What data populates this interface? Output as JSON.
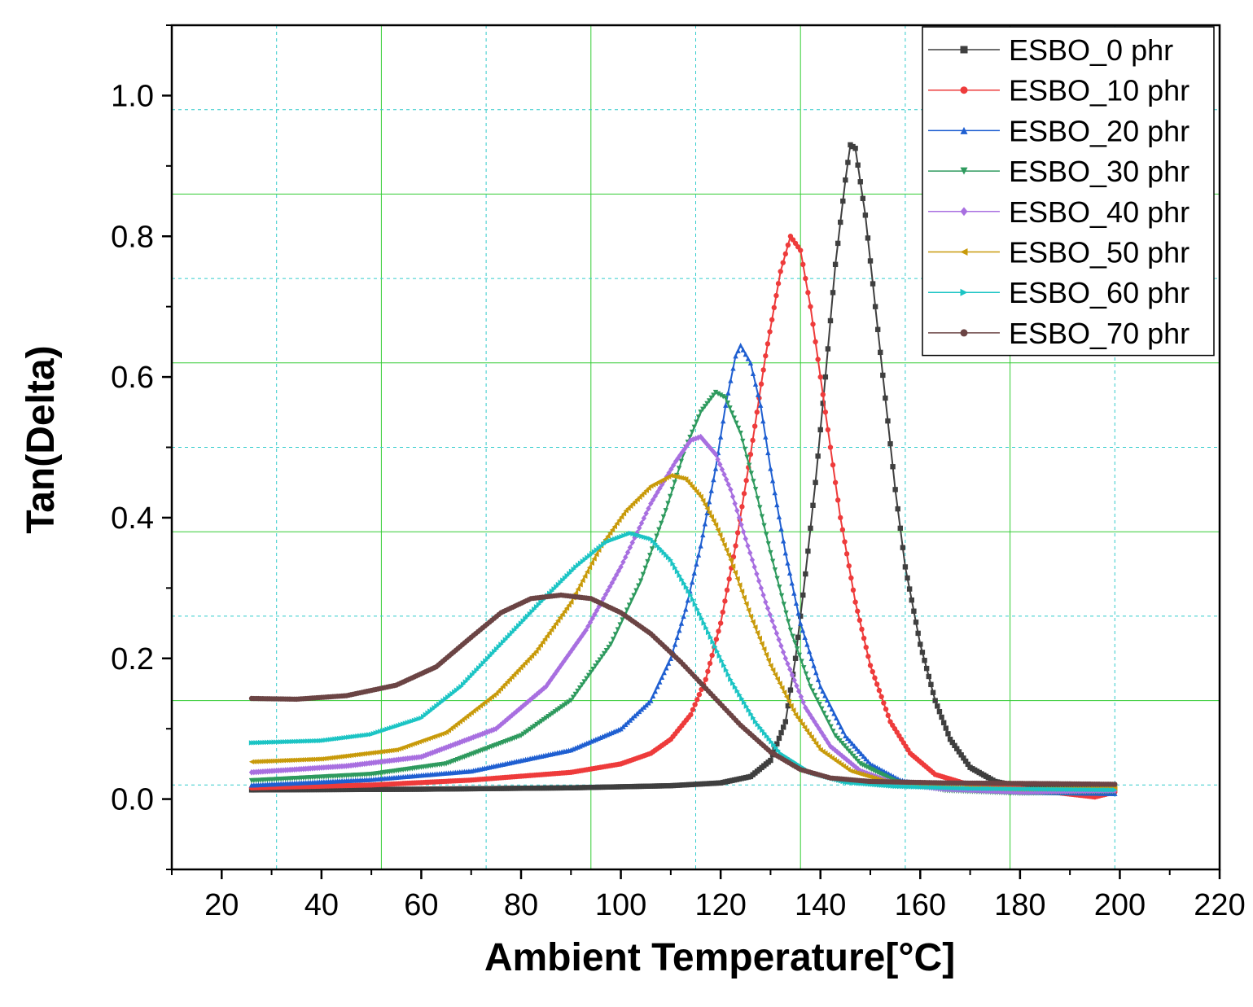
{
  "chart_data": {
    "type": "line",
    "xlabel": "Ambient Temperature[°C]",
    "ylabel": "Tan(Delta)",
    "xlim": [
      10,
      220
    ],
    "ylim": [
      -0.1,
      1.1
    ],
    "xticks": [
      20,
      40,
      60,
      80,
      100,
      120,
      140,
      160,
      180,
      200,
      220
    ],
    "yticks": [
      0.0,
      0.2,
      0.4,
      0.6,
      0.8,
      1.0
    ],
    "xtick_labels": [
      "20",
      "40",
      "60",
      "80",
      "100",
      "120",
      "140",
      "160",
      "180",
      "200",
      "220"
    ],
    "ytick_labels": [
      "0.0",
      "0.2",
      "0.4",
      "0.6",
      "0.8",
      "1.0"
    ],
    "grid": true,
    "legend_position": "top-right",
    "series": [
      {
        "name": "ESBO_0 phr",
        "color": "#3f3f3f",
        "marker": "square",
        "points": [
          [
            26,
            0.013
          ],
          [
            60,
            0.014
          ],
          [
            90,
            0.016
          ],
          [
            110,
            0.019
          ],
          [
            120,
            0.023
          ],
          [
            126,
            0.032
          ],
          [
            130,
            0.055
          ],
          [
            133,
            0.11
          ],
          [
            135,
            0.2
          ],
          [
            137,
            0.32
          ],
          [
            139,
            0.45
          ],
          [
            141,
            0.6
          ],
          [
            143,
            0.76
          ],
          [
            145,
            0.88
          ],
          [
            146,
            0.93
          ],
          [
            147,
            0.925
          ],
          [
            149,
            0.83
          ],
          [
            151,
            0.7
          ],
          [
            153,
            0.57
          ],
          [
            155,
            0.44
          ],
          [
            157,
            0.33
          ],
          [
            160,
            0.22
          ],
          [
            163,
            0.14
          ],
          [
            166,
            0.085
          ],
          [
            170,
            0.045
          ],
          [
            175,
            0.025
          ],
          [
            180,
            0.018
          ],
          [
            190,
            0.016
          ],
          [
            199,
            0.015
          ]
        ]
      },
      {
        "name": "ESBO_10 phr",
        "color": "#ee3b3b",
        "marker": "circle",
        "points": [
          [
            26,
            0.016
          ],
          [
            50,
            0.02
          ],
          [
            70,
            0.027
          ],
          [
            90,
            0.038
          ],
          [
            100,
            0.05
          ],
          [
            106,
            0.065
          ],
          [
            110,
            0.085
          ],
          [
            114,
            0.12
          ],
          [
            117,
            0.17
          ],
          [
            120,
            0.25
          ],
          [
            123,
            0.36
          ],
          [
            126,
            0.49
          ],
          [
            129,
            0.63
          ],
          [
            132,
            0.75
          ],
          [
            134,
            0.8
          ],
          [
            136,
            0.78
          ],
          [
            138,
            0.7
          ],
          [
            140,
            0.6
          ],
          [
            142,
            0.5
          ],
          [
            144,
            0.4
          ],
          [
            147,
            0.28
          ],
          [
            150,
            0.19
          ],
          [
            154,
            0.11
          ],
          [
            158,
            0.065
          ],
          [
            163,
            0.035
          ],
          [
            170,
            0.02
          ],
          [
            180,
            0.015
          ],
          [
            195,
            0.003
          ],
          [
            199,
            0.01
          ]
        ]
      },
      {
        "name": "ESBO_20 phr",
        "color": "#1f5fd1",
        "marker": "triangle-up",
        "points": [
          [
            26,
            0.02
          ],
          [
            50,
            0.028
          ],
          [
            70,
            0.04
          ],
          [
            90,
            0.07
          ],
          [
            100,
            0.1
          ],
          [
            106,
            0.14
          ],
          [
            110,
            0.2
          ],
          [
            113,
            0.27
          ],
          [
            116,
            0.36
          ],
          [
            119,
            0.47
          ],
          [
            121,
            0.56
          ],
          [
            123,
            0.63
          ],
          [
            124,
            0.645
          ],
          [
            126,
            0.62
          ],
          [
            128,
            0.56
          ],
          [
            130,
            0.47
          ],
          [
            133,
            0.35
          ],
          [
            136,
            0.25
          ],
          [
            140,
            0.16
          ],
          [
            145,
            0.09
          ],
          [
            150,
            0.05
          ],
          [
            156,
            0.027
          ],
          [
            165,
            0.015
          ],
          [
            180,
            0.01
          ],
          [
            199,
            0.008
          ]
        ]
      },
      {
        "name": "ESBO_30 phr",
        "color": "#2e9a5e",
        "marker": "triangle-down",
        "points": [
          [
            26,
            0.026
          ],
          [
            50,
            0.035
          ],
          [
            65,
            0.05
          ],
          [
            80,
            0.09
          ],
          [
            90,
            0.14
          ],
          [
            98,
            0.22
          ],
          [
            104,
            0.31
          ],
          [
            109,
            0.41
          ],
          [
            113,
            0.5
          ],
          [
            116,
            0.55
          ],
          [
            119,
            0.578
          ],
          [
            121,
            0.57
          ],
          [
            124,
            0.52
          ],
          [
            127,
            0.44
          ],
          [
            130,
            0.35
          ],
          [
            134,
            0.24
          ],
          [
            138,
            0.16
          ],
          [
            143,
            0.09
          ],
          [
            148,
            0.05
          ],
          [
            155,
            0.025
          ],
          [
            165,
            0.012
          ],
          [
            180,
            0.008
          ],
          [
            199,
            0.01
          ]
        ]
      },
      {
        "name": "ESBO_40 phr",
        "color": "#a86fe0",
        "marker": "diamond",
        "points": [
          [
            26,
            0.038
          ],
          [
            45,
            0.047
          ],
          [
            60,
            0.06
          ],
          [
            75,
            0.1
          ],
          [
            85,
            0.16
          ],
          [
            93,
            0.24
          ],
          [
            100,
            0.33
          ],
          [
            106,
            0.42
          ],
          [
            111,
            0.48
          ],
          [
            114,
            0.51
          ],
          [
            116,
            0.515
          ],
          [
            119,
            0.49
          ],
          [
            122,
            0.44
          ],
          [
            125,
            0.37
          ],
          [
            129,
            0.28
          ],
          [
            133,
            0.2
          ],
          [
            137,
            0.13
          ],
          [
            142,
            0.075
          ],
          [
            148,
            0.04
          ],
          [
            155,
            0.022
          ],
          [
            165,
            0.014
          ],
          [
            180,
            0.01
          ],
          [
            199,
            0.012
          ]
        ]
      },
      {
        "name": "ESBO_50 phr",
        "color": "#c89a0a",
        "marker": "triangle-left",
        "points": [
          [
            26,
            0.053
          ],
          [
            40,
            0.057
          ],
          [
            55,
            0.07
          ],
          [
            65,
            0.095
          ],
          [
            75,
            0.15
          ],
          [
            83,
            0.21
          ],
          [
            90,
            0.28
          ],
          [
            96,
            0.36
          ],
          [
            101,
            0.41
          ],
          [
            106,
            0.445
          ],
          [
            110,
            0.46
          ],
          [
            113,
            0.455
          ],
          [
            116,
            0.43
          ],
          [
            119,
            0.39
          ],
          [
            122,
            0.34
          ],
          [
            126,
            0.26
          ],
          [
            130,
            0.19
          ],
          [
            135,
            0.12
          ],
          [
            140,
            0.07
          ],
          [
            146,
            0.04
          ],
          [
            153,
            0.025
          ],
          [
            165,
            0.017
          ],
          [
            180,
            0.014
          ],
          [
            199,
            0.015
          ]
        ]
      },
      {
        "name": "ESBO_60 phr",
        "color": "#1bc4c4",
        "marker": "triangle-right",
        "points": [
          [
            26,
            0.08
          ],
          [
            40,
            0.083
          ],
          [
            50,
            0.092
          ],
          [
            60,
            0.115
          ],
          [
            68,
            0.16
          ],
          [
            76,
            0.22
          ],
          [
            84,
            0.28
          ],
          [
            91,
            0.33
          ],
          [
            97,
            0.365
          ],
          [
            102,
            0.378
          ],
          [
            106,
            0.37
          ],
          [
            110,
            0.34
          ],
          [
            114,
            0.29
          ],
          [
            118,
            0.23
          ],
          [
            122,
            0.17
          ],
          [
            127,
            0.11
          ],
          [
            132,
            0.065
          ],
          [
            138,
            0.038
          ],
          [
            145,
            0.024
          ],
          [
            155,
            0.018
          ],
          [
            170,
            0.015
          ],
          [
            185,
            0.014
          ],
          [
            199,
            0.013
          ]
        ]
      },
      {
        "name": "ESBO_70 phr",
        "color": "#6b4444",
        "marker": "circle",
        "points": [
          [
            26,
            0.143
          ],
          [
            35,
            0.142
          ],
          [
            45,
            0.147
          ],
          [
            55,
            0.162
          ],
          [
            63,
            0.188
          ],
          [
            70,
            0.23
          ],
          [
            76,
            0.265
          ],
          [
            82,
            0.285
          ],
          [
            88,
            0.29
          ],
          [
            94,
            0.285
          ],
          [
            100,
            0.265
          ],
          [
            106,
            0.235
          ],
          [
            112,
            0.195
          ],
          [
            118,
            0.15
          ],
          [
            124,
            0.105
          ],
          [
            130,
            0.067
          ],
          [
            136,
            0.042
          ],
          [
            142,
            0.03
          ],
          [
            150,
            0.025
          ],
          [
            165,
            0.023
          ],
          [
            185,
            0.022
          ],
          [
            199,
            0.021
          ]
        ]
      }
    ]
  }
}
